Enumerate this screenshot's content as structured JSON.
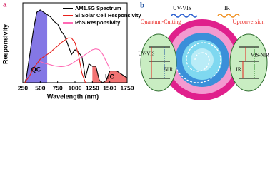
{
  "chart_data": {
    "type": "line",
    "panel_label": "a",
    "x_label": "Wavelength (nm)",
    "y_label": "Responsivity",
    "x": [
      280,
      300,
      350,
      400,
      450,
      500,
      550,
      600,
      650,
      700,
      750,
      800,
      850,
      900,
      950,
      1000,
      1050,
      1100,
      1150,
      1200,
      1250,
      1300,
      1350,
      1400,
      1450,
      1500,
      1550,
      1600,
      1650,
      1700,
      1750
    ],
    "series": [
      {
        "name": "AM1.5G Spectrum",
        "color": "#000000",
        "values": [
          0,
          0.1,
          0.6,
          1.1,
          1.5,
          1.55,
          1.5,
          1.45,
          1.4,
          1.3,
          1.25,
          1.1,
          1.0,
          0.8,
          0.6,
          0.7,
          0.65,
          0.55,
          0.1,
          0.4,
          0.35,
          0.35,
          0.05,
          0,
          0.05,
          0.25,
          0.25,
          0.25,
          0.2,
          0.15,
          0.1
        ]
      },
      {
        "name": "Si Solar Cell Responsivity",
        "color": "#e8211c",
        "values": [
          0,
          0.05,
          0.15,
          0.3,
          0.4,
          0.5,
          0.55,
          0.6,
          0.65,
          0.72,
          0.78,
          0.85,
          0.9,
          0.95,
          0.95,
          0.85,
          0.6,
          0.2,
          0,
          null,
          null,
          null,
          null,
          null,
          null,
          null,
          null,
          null,
          null,
          null,
          null
        ]
      },
      {
        "name": "PbS Responsivity",
        "color": "#ff69b4",
        "values": [
          null,
          null,
          null,
          null,
          null,
          0.45,
          0.42,
          0.4,
          0.38,
          0.36,
          0.35,
          0.34,
          0.35,
          0.37,
          0.4,
          0.45,
          0.5,
          0.55,
          0.6,
          0.65,
          0.7,
          0.72,
          0.7,
          0.6,
          0.45,
          0.3,
          null,
          null,
          null,
          null,
          null
        ]
      }
    ],
    "xlim": [
      250,
      1750
    ],
    "xticks": [
      250,
      500,
      750,
      1000,
      1250,
      1500,
      1750
    ],
    "ylim": [
      0,
      1.7
    ],
    "annotations": [
      "QC",
      "UC"
    ],
    "legend": "upper right"
  },
  "diagram": {
    "panel_label": "b",
    "top_left": "UV-VIS",
    "top_right": "IR",
    "left_title": "Quantum-Cutting",
    "right_title": "Upconversion",
    "left_upper": "UV-VIS",
    "left_lower": "NIR",
    "right_left": "IR",
    "right_right": "VIS-NIR"
  }
}
